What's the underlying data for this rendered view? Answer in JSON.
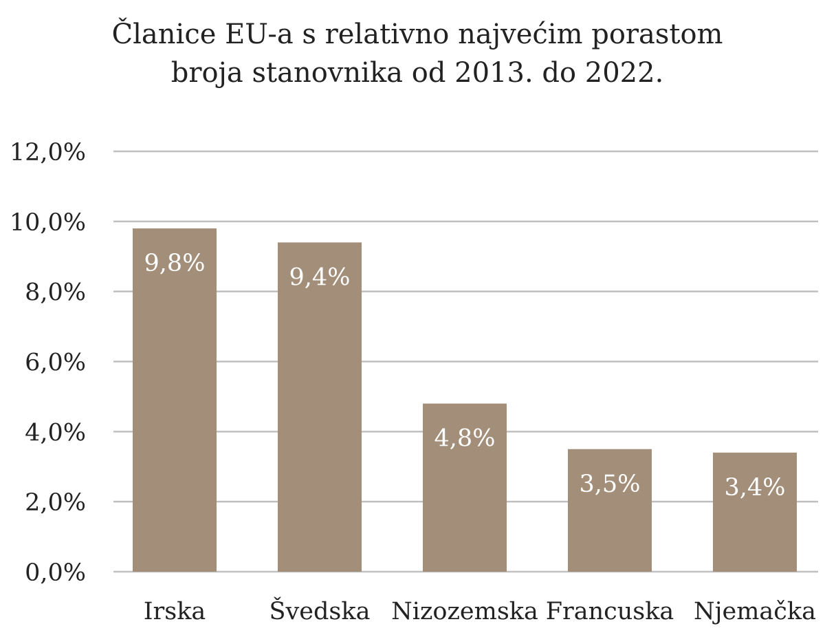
{
  "chart_data": {
    "type": "bar",
    "title_lines": [
      "Članice EU-a s relativno najvećim porastom",
      "broja stanovnika od 2013. do 2022."
    ],
    "categories": [
      "Irska",
      "Švedska",
      "Nizozemska",
      "Francuska",
      "Njemačka"
    ],
    "values": [
      9.8,
      9.4,
      4.8,
      3.5,
      3.4
    ],
    "data_labels": [
      "9,8%",
      "9,4%",
      "4,8%",
      "3,5%",
      "3,4%"
    ],
    "y_ticks": [
      "0,0%",
      "2,0%",
      "4,0%",
      "6,0%",
      "8,0%",
      "10,0%",
      "12,0%"
    ],
    "ylim": [
      0,
      12
    ],
    "grid": true,
    "legend": "none",
    "bar_color": "#a38f79",
    "grid_color": "#bfbfbf",
    "label_color": "#ffffff"
  }
}
